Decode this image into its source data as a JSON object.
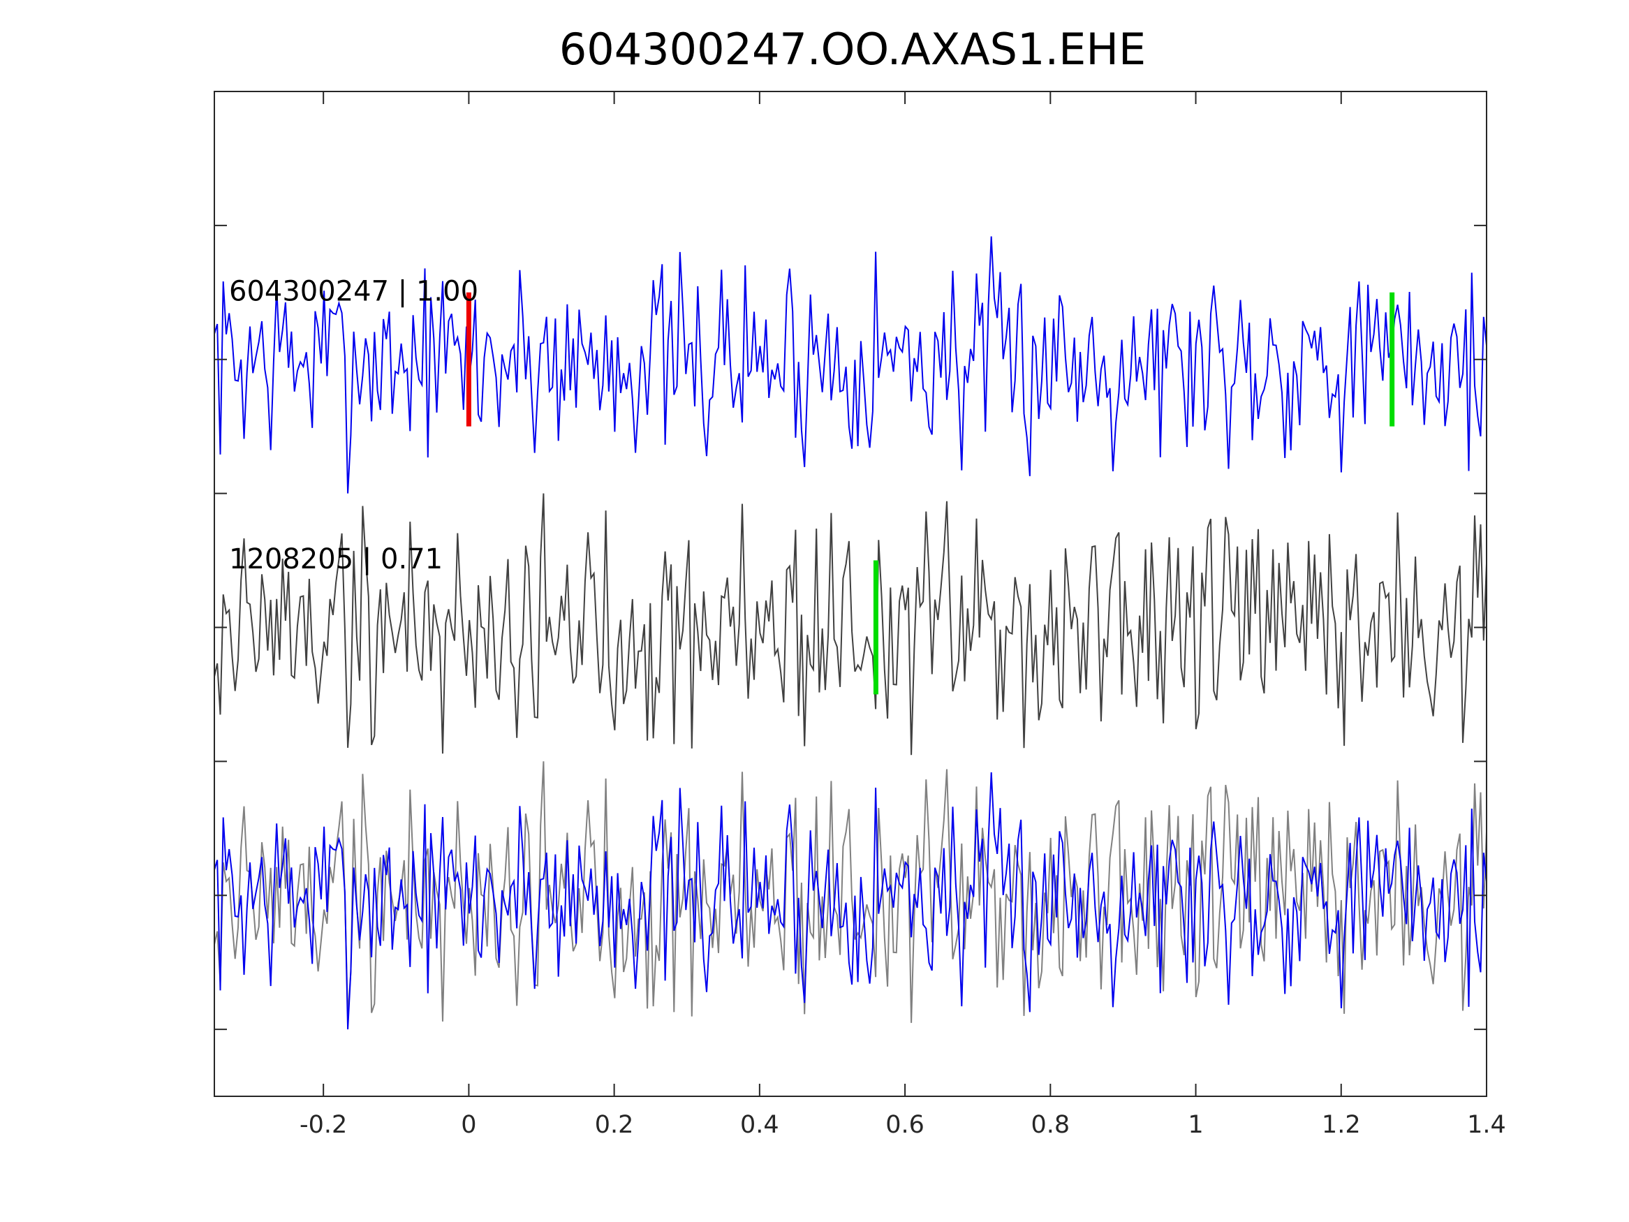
{
  "chart_data": {
    "type": "line",
    "title": "604300247.OO.AXAS1.EHE",
    "xlabel": "",
    "ylabel": "",
    "xlim": [
      -0.35,
      1.4
    ],
    "ylim": [
      -0.25,
      3.5
    ],
    "x_ticks": [
      -0.2,
      0,
      0.2,
      0.4,
      0.6,
      0.8,
      1,
      1.2,
      1.4
    ],
    "x_tick_labels": [
      "-0.2",
      "0",
      "0.2",
      "0.4",
      "0.6",
      "0.8",
      "1",
      "1.2",
      "1.4"
    ],
    "y_ticks": [
      0,
      0.5,
      1,
      1.5,
      2,
      2.5,
      3
    ],
    "y_tick_labels_shown": false,
    "grid": false,
    "traces": [
      {
        "label": "604300247 | 1.00",
        "offset": 2.5,
        "color": "#0000ee",
        "seed": 7
      },
      {
        "label": "1208205 | 0.71",
        "offset": 1.5,
        "color": "#404040",
        "seed": 19
      }
    ],
    "overlay_offset": 0.5,
    "overlay_colors": {
      "primary": "#0000ee",
      "secondary": "#808080"
    },
    "trace_x_range": [
      -0.35,
      1.4
    ],
    "trace_samples": 430,
    "trace_amplitude": 0.5,
    "markers": [
      {
        "x": 0.0,
        "y_low": 2.25,
        "y_high": 2.75,
        "color": "#ee0000"
      },
      {
        "x": 1.27,
        "y_low": 2.25,
        "y_high": 2.75,
        "color": "#00dd00"
      },
      {
        "x": 0.56,
        "y_low": 1.25,
        "y_high": 1.75,
        "color": "#00dd00"
      }
    ]
  }
}
